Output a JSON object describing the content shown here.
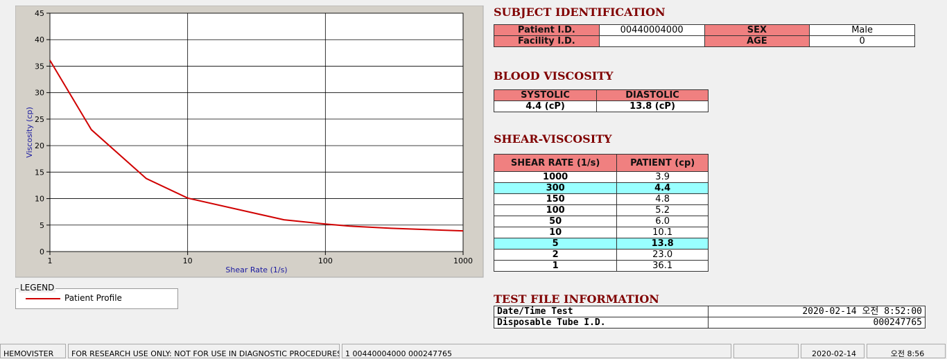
{
  "chart_data": {
    "type": "line",
    "xlabel": "Shear Rate (1/s)",
    "ylabel": "Viscosity (cp)",
    "x": [
      1000,
      300,
      150,
      100,
      50,
      10,
      5,
      2,
      1
    ],
    "series": [
      {
        "name": "Patient Profile",
        "color": "#d00000",
        "values": [
          3.9,
          4.4,
          4.8,
          5.2,
          6.0,
          10.1,
          13.8,
          23.0,
          36.1
        ],
        "value_labels": [
          "3.9",
          "4.4",
          "4.8",
          "5.2",
          "6.0",
          "10.1",
          "13.8",
          "23.0",
          "36.1"
        ]
      }
    ],
    "xscale": "log",
    "xlim": [
      1,
      1000
    ],
    "xticks": [
      1,
      10,
      100,
      1000
    ],
    "ylim": [
      0,
      45
    ],
    "yticks": [
      0,
      5,
      10,
      15,
      20,
      25,
      30,
      35,
      40,
      45
    ],
    "grid": true,
    "legend_title": "LEGEND"
  },
  "subject": {
    "title": "SUBJECT IDENTIFICATION",
    "rows": [
      [
        "Patient I.D.",
        "00440004000",
        "SEX",
        "Male"
      ],
      [
        "Facility I.D.",
        null,
        "AGE",
        "0"
      ]
    ]
  },
  "blood_viscosity": {
    "title": "BLOOD VISCOSITY",
    "headers": [
      "SYSTOLIC",
      "DIASTOLIC"
    ],
    "values": [
      "4.4 (cP)",
      "13.8 (cP)"
    ]
  },
  "shear_viscosity": {
    "title": "SHEAR-VISCOSITY",
    "headers": [
      "SHEAR RATE (1/s)",
      "PATIENT (cp)"
    ]
  },
  "test_file": {
    "title": "TEST FILE INFORMATION",
    "rows": [
      [
        "Date/Time Test",
        "2020-02-14   오전 8:52:00"
      ],
      [
        "Disposable Tube I.D.",
        "000247765"
      ]
    ]
  },
  "status_bar": [
    "HEMOVISTER",
    "FOR RESEARCH USE ONLY: NOT FOR USE IN DIAGNOSTIC PROCEDURES",
    "1  00440004000  000247765",
    "2020-02-14",
    "오전 8:56"
  ]
}
